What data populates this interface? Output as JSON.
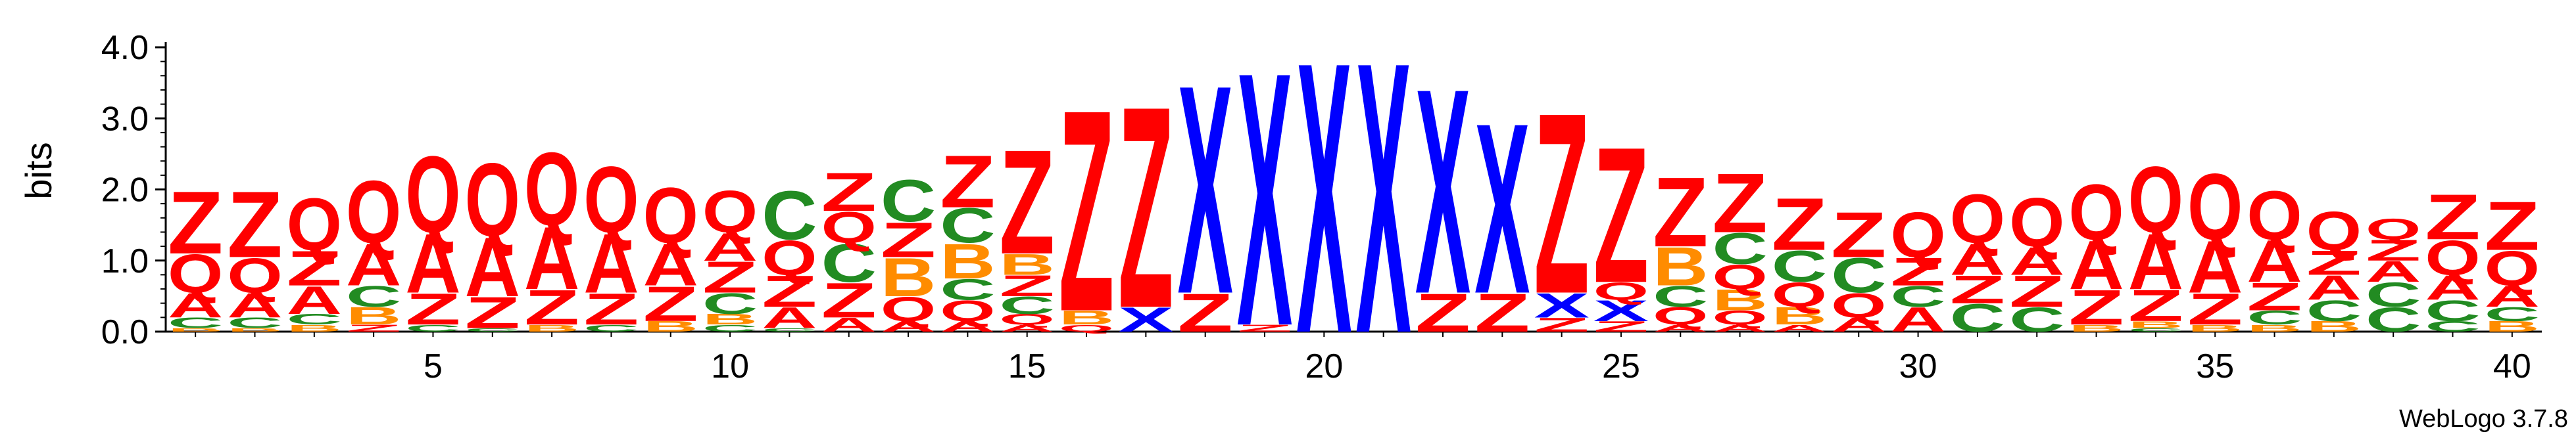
{
  "chart_data": {
    "type": "sequence-logo",
    "ylabel": "bits",
    "ylim": [
      0,
      4.0
    ],
    "yticks": [
      "0.0",
      "1.0",
      "2.0",
      "3.0",
      "4.0"
    ],
    "xticks": [
      5,
      10,
      15,
      20,
      25,
      30,
      35,
      40
    ],
    "positions": 40,
    "credit": "WebLogo 3.7.8",
    "colors": {
      "Z": "#ff0000",
      "Q": "#ff0000",
      "A": "#ff0000",
      "X": "#0000ff",
      "C": "#228b22",
      "B": "#ff8c00"
    },
    "columns": [
      [
        [
          "B",
          0.05
        ],
        [
          "C",
          0.15
        ],
        [
          "A",
          0.35
        ],
        [
          "Q",
          0.55
        ],
        [
          "Z",
          0.9
        ]
      ],
      [
        [
          "B",
          0.05
        ],
        [
          "C",
          0.15
        ],
        [
          "A",
          0.35
        ],
        [
          "Q",
          0.5
        ],
        [
          "Z",
          0.95
        ]
      ],
      [
        [
          "B",
          0.1
        ],
        [
          "C",
          0.15
        ],
        [
          "A",
          0.4
        ],
        [
          "Z",
          0.5
        ],
        [
          "Q",
          0.75
        ]
      ],
      [
        [
          "Z",
          0.1
        ],
        [
          "B",
          0.25
        ],
        [
          "C",
          0.3
        ],
        [
          "A",
          0.6
        ],
        [
          "Q",
          0.9
        ]
      ],
      [
        [
          "C",
          0.1
        ],
        [
          "Z",
          0.45
        ],
        [
          "A",
          0.85
        ],
        [
          "Q",
          1.1
        ]
      ],
      [
        [
          "C",
          0.05
        ],
        [
          "Z",
          0.45
        ],
        [
          "A",
          0.85
        ],
        [
          "Q",
          1.05
        ]
      ],
      [
        [
          "B",
          0.1
        ],
        [
          "Z",
          0.5
        ],
        [
          "A",
          0.9
        ],
        [
          "Q",
          1.05
        ]
      ],
      [
        [
          "C",
          0.1
        ],
        [
          "Z",
          0.45
        ],
        [
          "A",
          0.85
        ],
        [
          "Q",
          0.95
        ]
      ],
      [
        [
          "B",
          0.15
        ],
        [
          "Z",
          0.5
        ],
        [
          "A",
          0.6
        ],
        [
          "Q",
          0.8
        ]
      ],
      [
        [
          "C",
          0.1
        ],
        [
          "B",
          0.15
        ],
        [
          "C",
          0.3
        ],
        [
          "Z",
          0.45
        ],
        [
          "A",
          0.4
        ],
        [
          "Q",
          0.6
        ]
      ],
      [
        [
          "C",
          0.05
        ],
        [
          "A",
          0.3
        ],
        [
          "Z",
          0.45
        ],
        [
          "Q",
          0.5
        ],
        [
          "C",
          0.7
        ]
      ],
      [
        [
          "A",
          0.2
        ],
        [
          "Z",
          0.5
        ],
        [
          "C",
          0.55
        ],
        [
          "Q",
          0.45
        ],
        [
          "Z",
          0.55
        ]
      ],
      [
        [
          "A",
          0.15
        ],
        [
          "Q",
          0.35
        ],
        [
          "B",
          0.55
        ],
        [
          "Z",
          0.5
        ],
        [
          "C",
          0.6
        ]
      ],
      [
        [
          "A",
          0.15
        ],
        [
          "Q",
          0.3
        ],
        [
          "C",
          0.3
        ],
        [
          "B",
          0.5
        ],
        [
          "C",
          0.5
        ],
        [
          "Z",
          0.75
        ]
      ],
      [
        [
          "A",
          0.1
        ],
        [
          "Q",
          0.15
        ],
        [
          "C",
          0.25
        ],
        [
          "Z",
          0.3
        ],
        [
          "B",
          0.3
        ],
        [
          "Z",
          1.5
        ]
      ],
      [
        [
          "Q",
          0.1
        ],
        [
          "B",
          0.2
        ],
        [
          "Z",
          2.9
        ]
      ],
      [
        [
          "X",
          0.35
        ],
        [
          "Z",
          2.9
        ]
      ],
      [
        [
          "Z",
          0.55
        ],
        [
          "X",
          3.0
        ]
      ],
      [
        [
          "Z",
          0.1
        ],
        [
          "X",
          3.65
        ]
      ],
      [
        [
          "X",
          3.9
        ]
      ],
      [
        [
          "X",
          3.9
        ]
      ],
      [
        [
          "Z",
          0.55
        ],
        [
          "X",
          2.95
        ]
      ],
      [
        [
          "Z",
          0.55
        ],
        [
          "X",
          2.45
        ]
      ],
      [
        [
          "Z",
          0.2
        ],
        [
          "X",
          0.35
        ],
        [
          "Z",
          2.6
        ]
      ],
      [
        [
          "Z",
          0.15
        ],
        [
          "X",
          0.3
        ],
        [
          "Q",
          0.25
        ],
        [
          "Z",
          1.95
        ]
      ],
      [
        [
          "A",
          0.1
        ],
        [
          "Q",
          0.25
        ],
        [
          "C",
          0.3
        ],
        [
          "B",
          0.55
        ],
        [
          "Z",
          1.0
        ]
      ],
      [
        [
          "A",
          0.1
        ],
        [
          "Q",
          0.2
        ],
        [
          "B",
          0.3
        ],
        [
          "Q",
          0.35
        ],
        [
          "C",
          0.45
        ],
        [
          "Z",
          0.85
        ]
      ],
      [
        [
          "A",
          0.1
        ],
        [
          "B",
          0.25
        ],
        [
          "Q",
          0.35
        ],
        [
          "C",
          0.45
        ],
        [
          "Z",
          0.75
        ]
      ],
      [
        [
          "A",
          0.2
        ],
        [
          "Q",
          0.35
        ],
        [
          "C",
          0.5
        ],
        [
          "Z",
          0.65
        ]
      ],
      [
        [
          "A",
          0.35
        ],
        [
          "C",
          0.3
        ],
        [
          "Z",
          0.4
        ],
        [
          "Q",
          0.65
        ]
      ],
      [
        [
          "C",
          0.4
        ],
        [
          "Z",
          0.4
        ],
        [
          "A",
          0.45
        ],
        [
          "Q",
          0.7
        ]
      ],
      [
        [
          "C",
          0.35
        ],
        [
          "Z",
          0.45
        ],
        [
          "A",
          0.4
        ],
        [
          "Q",
          0.7
        ]
      ],
      [
        [
          "B",
          0.1
        ],
        [
          "Z",
          0.5
        ],
        [
          "A",
          0.7
        ],
        [
          "Q",
          0.8
        ]
      ],
      [
        [
          "C",
          0.05
        ],
        [
          "B",
          0.1
        ],
        [
          "Z",
          0.45
        ],
        [
          "A",
          0.8
        ],
        [
          "Q",
          0.95
        ]
      ],
      [
        [
          "B",
          0.1
        ],
        [
          "Z",
          0.45
        ],
        [
          "A",
          0.75
        ],
        [
          "Q",
          0.95
        ]
      ],
      [
        [
          "B",
          0.1
        ],
        [
          "C",
          0.2
        ],
        [
          "Z",
          0.4
        ],
        [
          "A",
          0.6
        ],
        [
          "Q",
          0.7
        ]
      ],
      [
        [
          "B",
          0.15
        ],
        [
          "C",
          0.3
        ],
        [
          "A",
          0.35
        ],
        [
          "Z",
          0.35
        ],
        [
          "Q",
          0.55
        ]
      ],
      [
        [
          "C",
          0.35
        ],
        [
          "C",
          0.35
        ],
        [
          "A",
          0.3
        ],
        [
          "Z",
          0.3
        ],
        [
          "Q",
          0.3
        ]
      ],
      [
        [
          "C",
          0.15
        ],
        [
          "C",
          0.3
        ],
        [
          "A",
          0.35
        ],
        [
          "Q",
          0.5
        ],
        [
          "Z",
          0.65
        ]
      ],
      [
        [
          "B",
          0.15
        ],
        [
          "C",
          0.2
        ],
        [
          "A",
          0.3
        ],
        [
          "Q",
          0.5
        ],
        [
          "Z",
          0.7
        ]
      ]
    ]
  }
}
